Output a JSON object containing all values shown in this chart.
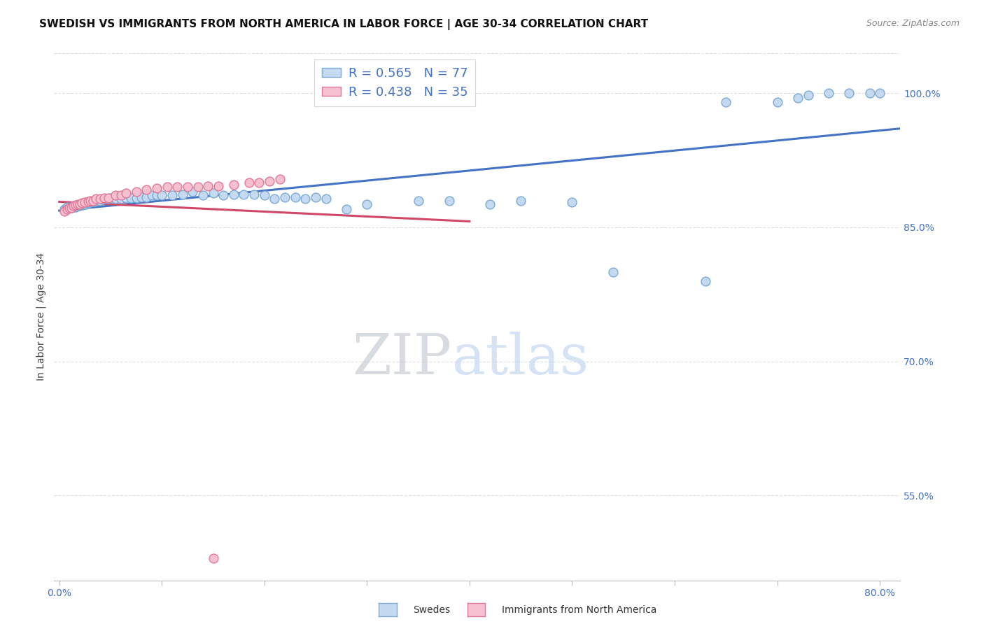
{
  "title": "SWEDISH VS IMMIGRANTS FROM NORTH AMERICA IN LABOR FORCE | AGE 30-34 CORRELATION CHART",
  "source": "Source: ZipAtlas.com",
  "ylabel": "In Labor Force | Age 30-34",
  "xlim": [
    -0.005,
    0.82
  ],
  "ylim": [
    0.455,
    1.045
  ],
  "xticks": [
    0.0,
    0.1,
    0.2,
    0.3,
    0.4,
    0.5,
    0.6,
    0.7,
    0.8
  ],
  "xticklabels": [
    "0.0%",
    "",
    "",
    "",
    "",
    "",
    "",
    "",
    "80.0%"
  ],
  "yticks": [
    0.55,
    0.7,
    0.85,
    1.0
  ],
  "yticklabels": [
    "55.0%",
    "70.0%",
    "85.0%",
    "100.0%"
  ],
  "grid_color": "#e0e0e0",
  "background_color": "#ffffff",
  "swedes_face": "#c5d9f0",
  "swedes_edge": "#7aaad5",
  "immigrants_face": "#f5c0d0",
  "immigrants_edge": "#e07898",
  "swedes_line": "#4472c4",
  "immigrants_line": "#d04868",
  "R_swedes": 0.565,
  "N_swedes": 77,
  "R_immigrants": 0.438,
  "N_immigrants": 35,
  "legend_label_swedes": "Swedes",
  "legend_label_immigrants": "Immigrants from North America",
  "watermark_zip": "ZIP",
  "watermark_atlas": "atlas",
  "swedes_x": [
    0.005,
    0.007,
    0.008,
    0.009,
    0.01,
    0.011,
    0.012,
    0.013,
    0.014,
    0.015,
    0.016,
    0.017,
    0.018,
    0.018,
    0.019,
    0.02,
    0.02,
    0.022,
    0.023,
    0.024,
    0.025,
    0.026,
    0.027,
    0.028,
    0.03,
    0.032,
    0.033,
    0.035,
    0.037,
    0.04,
    0.042,
    0.045,
    0.048,
    0.05,
    0.055,
    0.06,
    0.065,
    0.07,
    0.075,
    0.08,
    0.085,
    0.09,
    0.095,
    0.1,
    0.11,
    0.12,
    0.13,
    0.14,
    0.15,
    0.16,
    0.17,
    0.18,
    0.19,
    0.2,
    0.21,
    0.22,
    0.23,
    0.24,
    0.25,
    0.26,
    0.28,
    0.3,
    0.35,
    0.38,
    0.42,
    0.45,
    0.5,
    0.54,
    0.63,
    0.65,
    0.7,
    0.72,
    0.73,
    0.75,
    0.77,
    0.79,
    0.8
  ],
  "swedes_y": [
    0.87,
    0.872,
    0.873,
    0.872,
    0.872,
    0.873,
    0.872,
    0.873,
    0.874,
    0.873,
    0.873,
    0.874,
    0.874,
    0.875,
    0.874,
    0.874,
    0.875,
    0.875,
    0.875,
    0.876,
    0.876,
    0.876,
    0.877,
    0.877,
    0.878,
    0.879,
    0.879,
    0.879,
    0.88,
    0.88,
    0.881,
    0.882,
    0.882,
    0.883,
    0.882,
    0.882,
    0.883,
    0.883,
    0.883,
    0.884,
    0.884,
    0.886,
    0.886,
    0.886,
    0.886,
    0.887,
    0.89,
    0.886,
    0.888,
    0.886,
    0.887,
    0.887,
    0.887,
    0.886,
    0.882,
    0.884,
    0.884,
    0.882,
    0.884,
    0.882,
    0.87,
    0.876,
    0.88,
    0.88,
    0.876,
    0.88,
    0.878,
    0.8,
    0.79,
    0.99,
    0.99,
    0.995,
    0.998,
    1.0,
    1.0,
    1.0,
    1.0
  ],
  "immigrants_x": [
    0.005,
    0.008,
    0.01,
    0.012,
    0.014,
    0.016,
    0.018,
    0.02,
    0.022,
    0.025,
    0.028,
    0.03,
    0.033,
    0.036,
    0.04,
    0.044,
    0.048,
    0.055,
    0.06,
    0.065,
    0.075,
    0.085,
    0.095,
    0.105,
    0.115,
    0.125,
    0.135,
    0.145,
    0.155,
    0.17,
    0.185,
    0.195,
    0.205,
    0.215,
    0.15
  ],
  "immigrants_y": [
    0.868,
    0.87,
    0.872,
    0.872,
    0.874,
    0.875,
    0.876,
    0.876,
    0.877,
    0.878,
    0.879,
    0.88,
    0.88,
    0.882,
    0.882,
    0.883,
    0.883,
    0.886,
    0.886,
    0.888,
    0.89,
    0.892,
    0.894,
    0.895,
    0.895,
    0.895,
    0.895,
    0.896,
    0.896,
    0.898,
    0.9,
    0.9,
    0.902,
    0.904,
    0.48
  ]
}
